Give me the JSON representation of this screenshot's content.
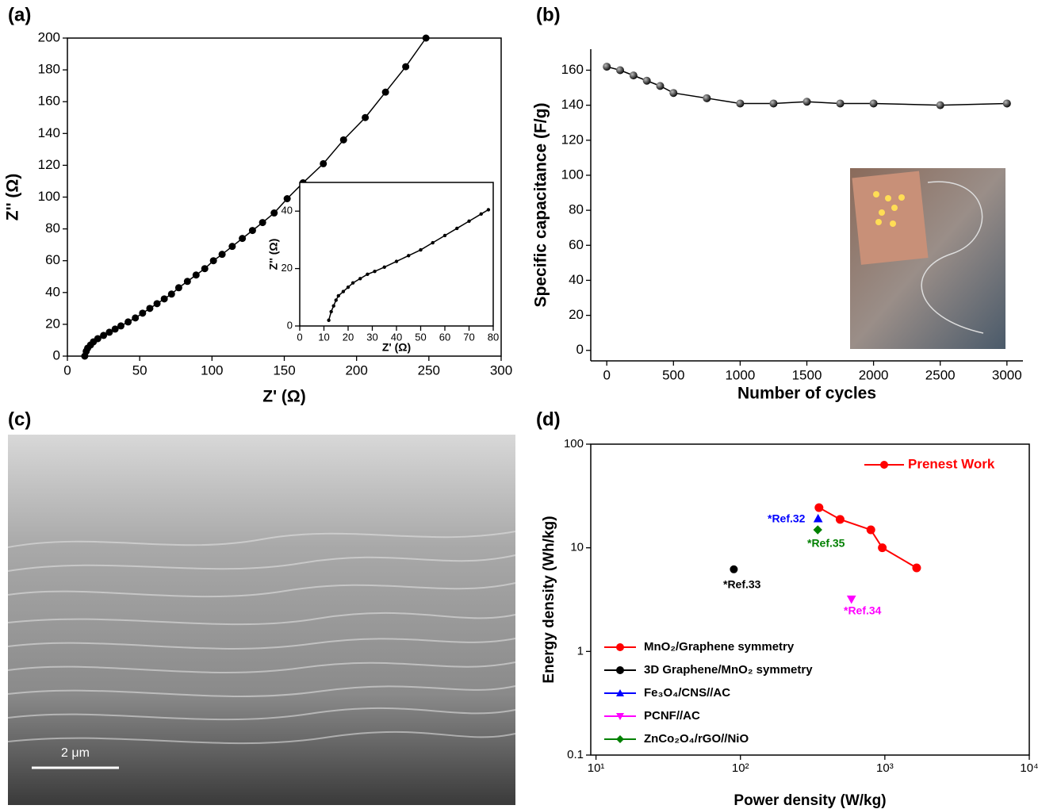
{
  "panel_labels": [
    "(a)",
    "(b)",
    "(c)",
    "(d)"
  ],
  "scale_bar": "2 μm",
  "chart_data": [
    {
      "type": "line",
      "x_label": "Z' (Ω)",
      "y_label": "Z'' (Ω)",
      "color": "#000000",
      "x": [
        12,
        13,
        14,
        16,
        18,
        21,
        25,
        29,
        33,
        37,
        42,
        47,
        52,
        57,
        62,
        67,
        72,
        77,
        83,
        89,
        95,
        101,
        107,
        114,
        121,
        128,
        135,
        143,
        152,
        163,
        177,
        191,
        206,
        220,
        234,
        248
      ],
      "values": [
        0,
        3,
        5,
        7,
        9,
        11,
        13,
        15,
        17,
        19,
        21.5,
        24,
        27,
        30,
        33,
        36,
        39,
        43,
        47,
        51,
        55,
        60,
        64,
        69,
        74,
        79,
        84,
        90,
        99,
        109,
        121,
        136,
        150,
        166,
        182,
        200
      ],
      "xlim": [
        0,
        300
      ],
      "ylim": [
        0,
        200
      ],
      "xticks": [
        0,
        50,
        100,
        150,
        200,
        250,
        300
      ],
      "yticks": [
        0,
        20,
        40,
        60,
        80,
        100,
        120,
        140,
        160,
        180,
        200
      ]
    },
    {
      "type": "line",
      "x_label": "Z' (Ω)",
      "y_label": "Z'' (Ω)",
      "color": "#000000",
      "x": [
        12,
        13,
        14,
        15,
        16,
        18,
        20,
        22,
        25,
        28,
        31,
        35,
        40,
        45,
        50,
        55,
        60,
        65,
        70,
        75,
        78
      ],
      "values": [
        2,
        5,
        7,
        9,
        10.5,
        12,
        13.5,
        15,
        16.5,
        18,
        19,
        20.5,
        22.5,
        24.5,
        26.5,
        29,
        31.5,
        34,
        36.5,
        39,
        40.5
      ],
      "xlim": [
        0,
        80
      ],
      "ylim": [
        0,
        50
      ],
      "xticks": [
        0,
        10,
        20,
        30,
        40,
        50,
        60,
        70,
        80
      ],
      "yticks": [
        0,
        20,
        40
      ]
    },
    {
      "type": "line",
      "x_label": "Number of cycles",
      "y_label": "Specific capacitance (F/g)",
      "color": "#000000",
      "x": [
        0,
        100,
        200,
        300,
        400,
        500,
        750,
        1000,
        1250,
        1500,
        1750,
        2000,
        2500,
        3000
      ],
      "values": [
        162,
        160,
        157,
        154,
        151,
        147,
        144,
        141,
        141,
        142,
        141,
        141,
        140,
        141
      ],
      "xlim": [
        -120,
        3120
      ],
      "ylim": [
        -6,
        172
      ],
      "xticks": [
        0,
        500,
        1000,
        1500,
        2000,
        2500,
        3000
      ],
      "yticks": [
        0,
        20,
        40,
        60,
        80,
        100,
        120,
        140,
        160
      ]
    },
    {
      "type": "scatter",
      "x_label": "Power density (W/kg)",
      "y_label": "Energy density (Wh/kg)",
      "xlog": true,
      "ylog": true,
      "legend": "lower left",
      "xlim": [
        9.2,
        10000
      ],
      "ylim": [
        0.1,
        100
      ],
      "xticks": [
        {
          "value": 10,
          "label": "10¹"
        },
        {
          "value": 100,
          "label": "10²"
        },
        {
          "value": 1000,
          "label": "10³"
        },
        {
          "value": 10000,
          "label": "10⁴"
        }
      ],
      "yticks": [
        0.1,
        1,
        10,
        100
      ],
      "series": [
        {
          "name": "MnO₂/Graphene  symmetry",
          "color": "#ff0000",
          "marker": "circle",
          "line": true,
          "x": [
            350,
            490,
            800,
            960,
            1660
          ],
          "values": [
            24.4,
            18.8,
            14.9,
            10,
            6.4
          ]
        },
        {
          "name": "3D Graphene/MnO₂ symmetry",
          "color": "#000000",
          "marker": "circle",
          "line": false,
          "x": [
            90
          ],
          "values": [
            6.2
          ]
        },
        {
          "name": "Fe₃O₄/CNS//AC",
          "color": "#0000ff",
          "marker": "triangle-up",
          "line": false,
          "x": [
            345
          ],
          "values": [
            19.1
          ]
        },
        {
          "name": "PCNF//AC",
          "color": "#ff00ff",
          "marker": "triangle-down",
          "line": false,
          "x": [
            587
          ],
          "values": [
            3.2
          ]
        },
        {
          "name": "ZnCo₂O₄/rGO//NiO",
          "color": "#008000",
          "marker": "diamond",
          "line": false,
          "x": [
            343
          ],
          "values": [
            14.9
          ]
        }
      ],
      "annotations": [
        {
          "text": "*Ref.32",
          "color": "#0000ff"
        },
        {
          "text": "*Ref.33",
          "color": "#000000"
        },
        {
          "text": "*Ref.34",
          "color": "#ff00ff"
        },
        {
          "text": "*Ref.35",
          "color": "#008000"
        },
        {
          "text": "Prenest Work",
          "color": "#ff0000"
        }
      ]
    }
  ]
}
